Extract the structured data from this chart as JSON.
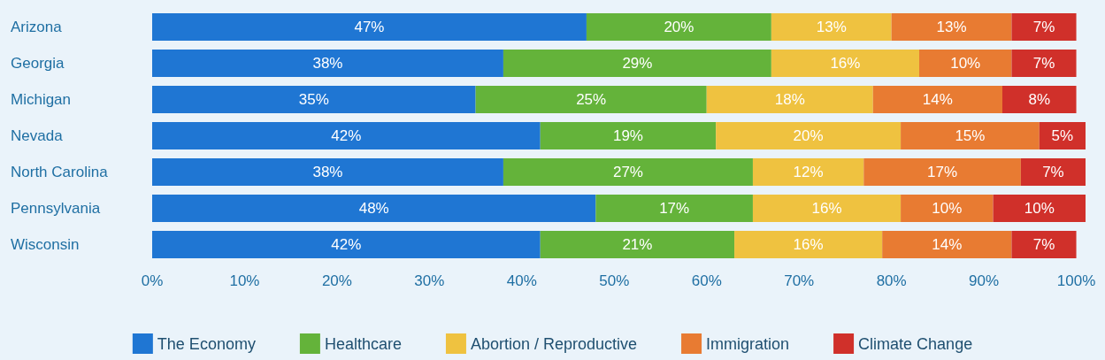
{
  "chart_data": {
    "type": "bar",
    "orientation": "horizontal",
    "stacked": true,
    "grid": false,
    "legend": "bottom",
    "categories": [
      "Arizona",
      "Georgia",
      "Michigan",
      "Nevada",
      "North Carolina",
      "Pennsylvania",
      "Wisconsin"
    ],
    "xlim": [
      0,
      101
    ],
    "xticks": [
      {
        "value": 0,
        "label": "0%"
      },
      {
        "value": 10,
        "label": "10%"
      },
      {
        "value": 20,
        "label": "20%"
      },
      {
        "value": 30,
        "label": "30%"
      },
      {
        "value": 40,
        "label": "40%"
      },
      {
        "value": 50,
        "label": "50%"
      },
      {
        "value": 60,
        "label": "60%"
      },
      {
        "value": 70,
        "label": "70%"
      },
      {
        "value": 80,
        "label": "80%"
      },
      {
        "value": 90,
        "label": "90%"
      },
      {
        "value": 100,
        "label": "100%"
      }
    ],
    "series": [
      {
        "name": "The Economy",
        "color": "#1f76d3",
        "values": [
          47,
          38,
          35,
          42,
          38,
          48,
          42
        ],
        "value_labels": [
          "47%",
          "38%",
          "35%",
          "42%",
          "38%",
          "48%",
          "42%"
        ]
      },
      {
        "name": "Healthcare",
        "color": "#64b33a",
        "values": [
          20,
          29,
          25,
          19,
          27,
          17,
          21
        ],
        "value_labels": [
          "20%",
          "29%",
          "25%",
          "19%",
          "27%",
          "17%",
          "21%"
        ]
      },
      {
        "name": "Abortion / Reproductive",
        "color": "#efc240",
        "values": [
          13,
          16,
          18,
          20,
          12,
          16,
          16
        ],
        "value_labels": [
          "13%",
          "16%",
          "18%",
          "20%",
          "12%",
          "16%",
          "16%"
        ]
      },
      {
        "name": "Immigration",
        "color": "#e87b32",
        "values": [
          13,
          10,
          14,
          15,
          17,
          10,
          14
        ],
        "value_labels": [
          "13%",
          "10%",
          "14%",
          "15%",
          "17%",
          "10%",
          "14%"
        ]
      },
      {
        "name": "Climate Change",
        "color": "#d0302a",
        "values": [
          7,
          7,
          8,
          5,
          7,
          10,
          7
        ],
        "value_labels": [
          "7%",
          "7%",
          "8%",
          "5%",
          "7%",
          "10%",
          "7%"
        ]
      }
    ]
  }
}
